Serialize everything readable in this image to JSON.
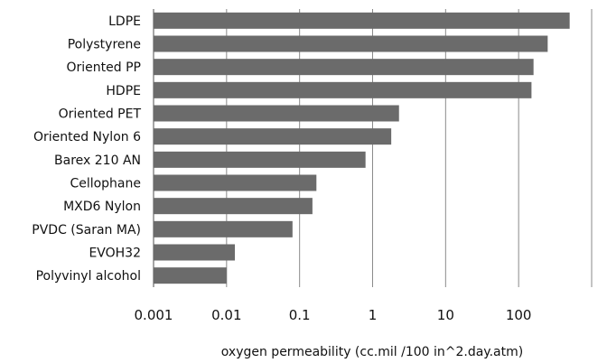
{
  "chart_data": {
    "type": "bar",
    "orientation": "horizontal",
    "x_scale": "log",
    "categories": [
      "LDPE",
      "Polystyrene",
      "Oriented PP",
      "HDPE",
      "Oriented PET",
      "Oriented Nylon 6",
      "Barex 210 AN",
      "Cellophane",
      "MXD6 Nylon",
      "PVDC (Saran MA)",
      "EVOH32",
      "Polyvinyl alcohol"
    ],
    "values": [
      500,
      250,
      160,
      150,
      2.3,
      1.8,
      0.8,
      0.17,
      0.15,
      0.08,
      0.013,
      0.01
    ],
    "xlim": [
      0.001,
      1000
    ],
    "x_ticks": [
      0.001,
      0.01,
      0.1,
      1,
      10,
      100
    ],
    "x_tick_labels": [
      "0.001",
      "0.01",
      "0.1",
      "1",
      "10",
      "100"
    ],
    "xlabel": "oxygen permeability (cc.mil /100 in^2.day.atm)",
    "title": "",
    "bar_color": "#6b6b6b",
    "grid": "vertical"
  }
}
